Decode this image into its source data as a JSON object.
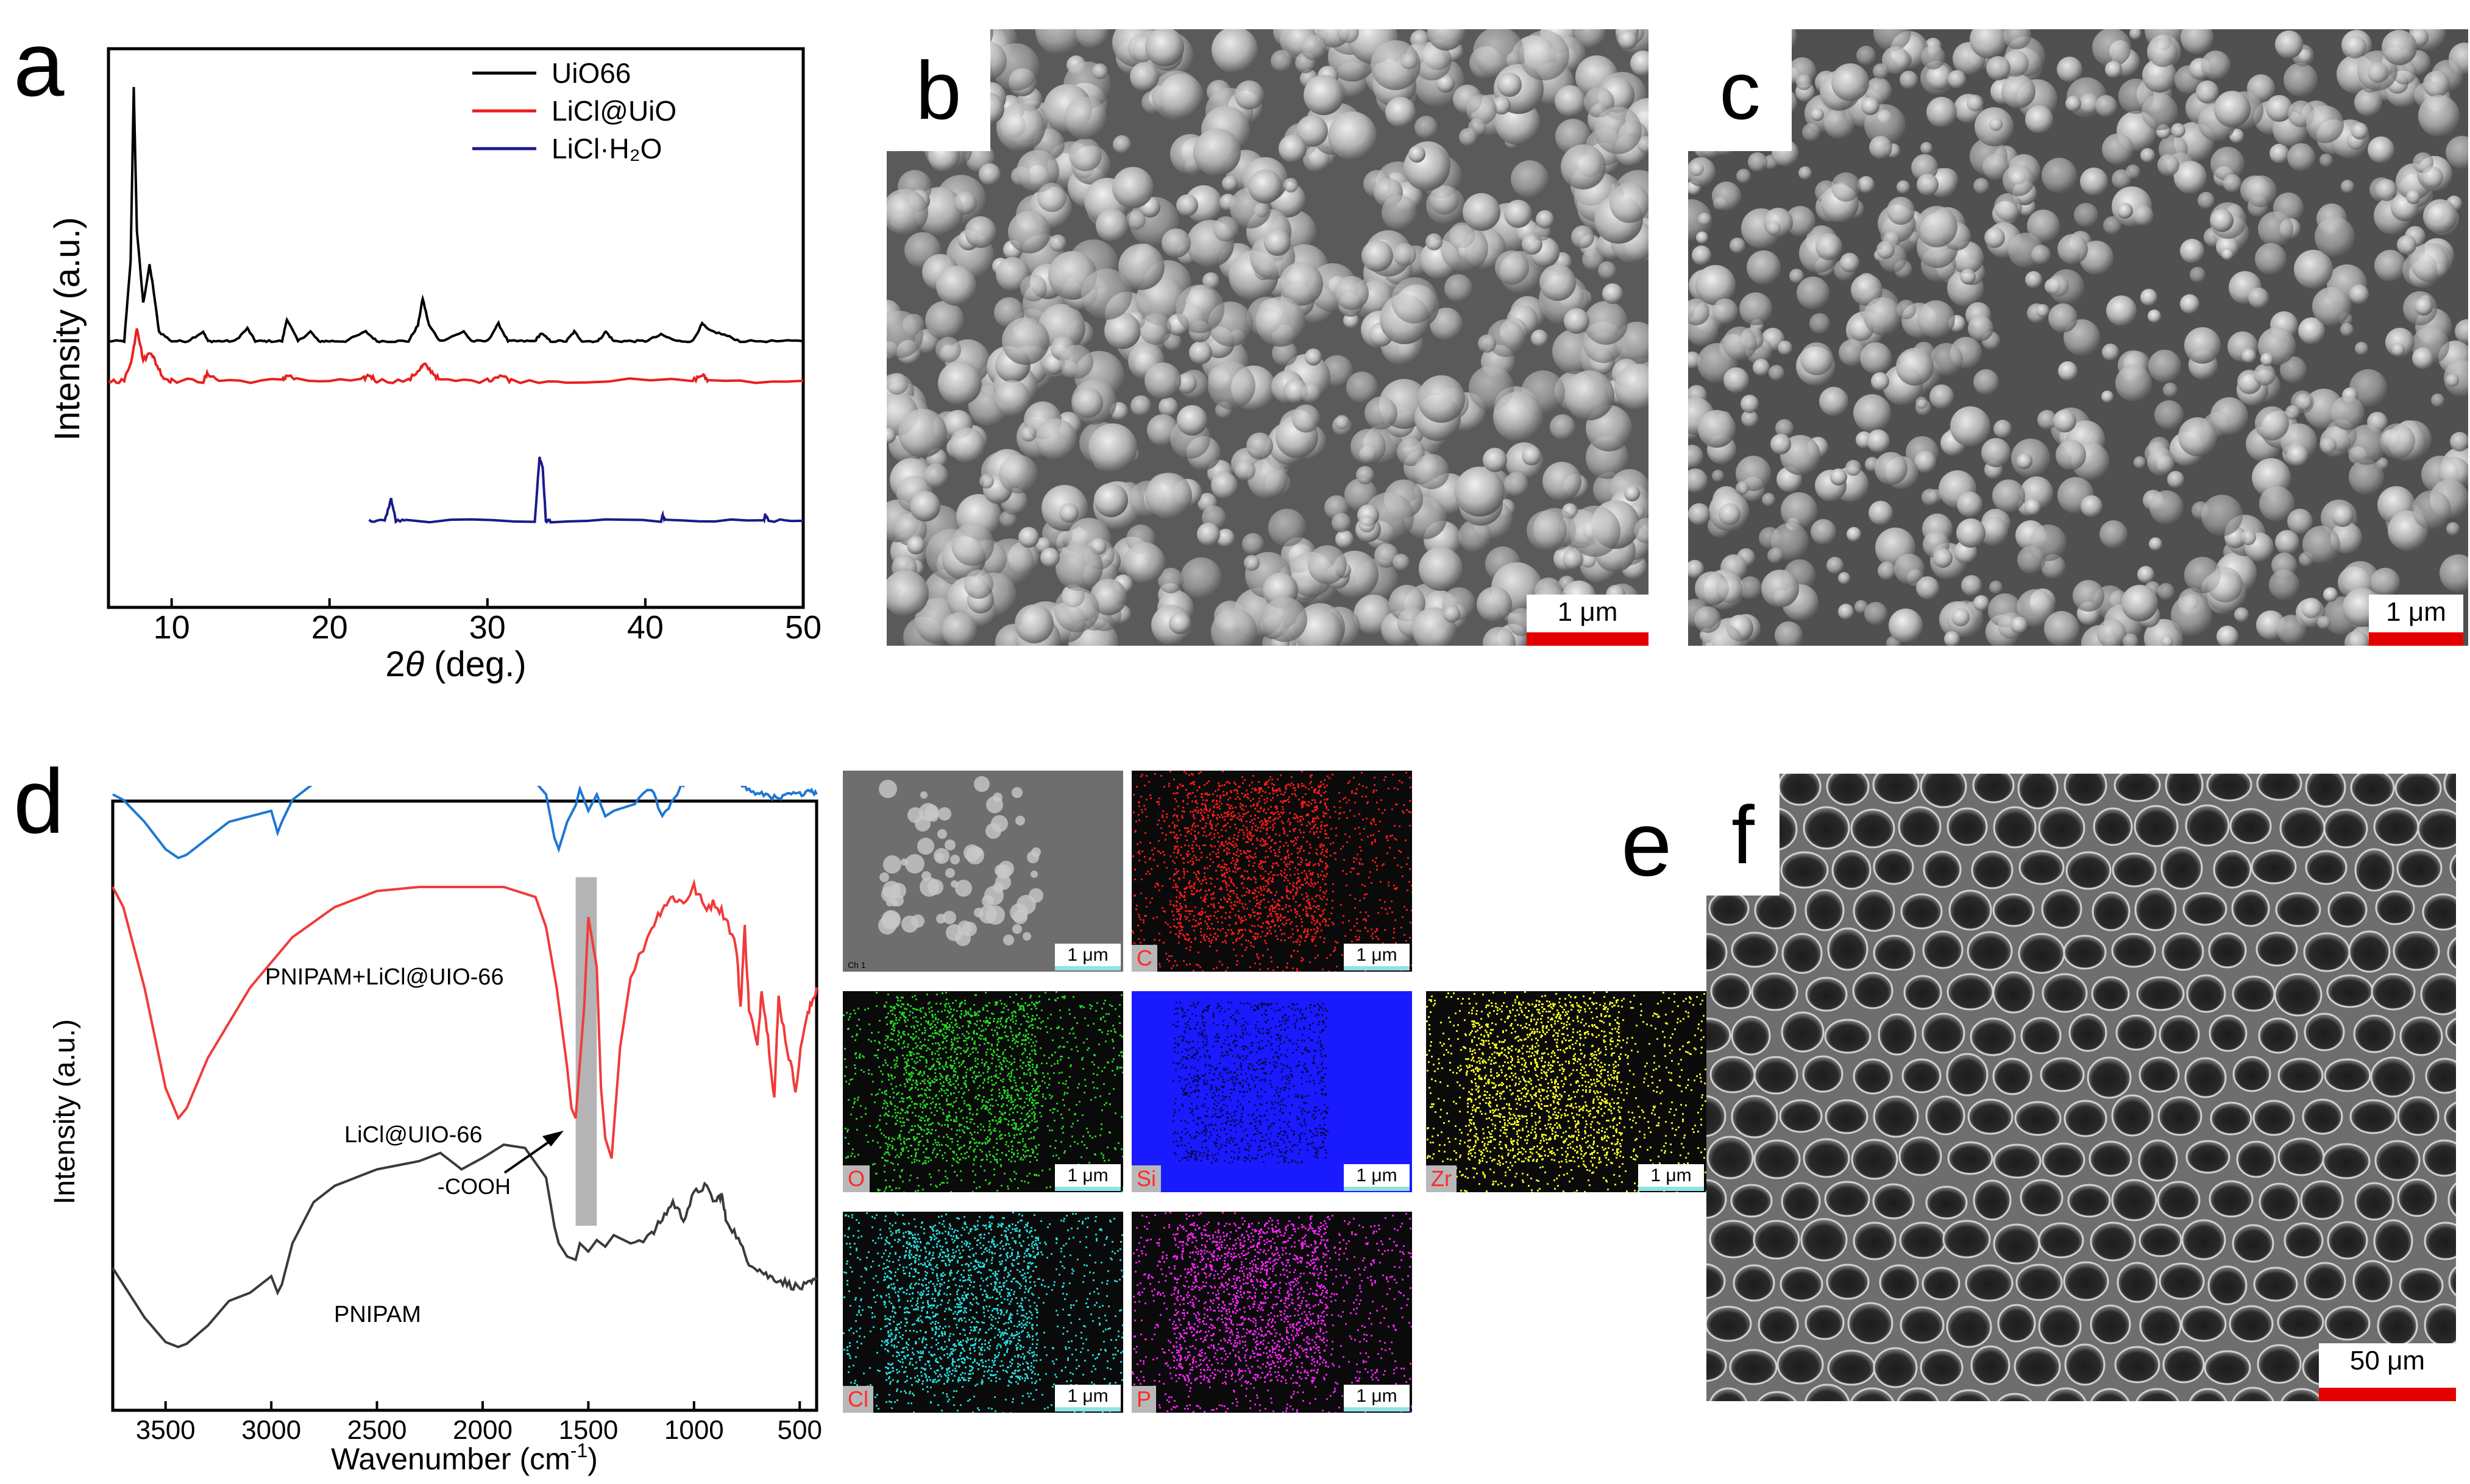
{
  "panels": {
    "a": "a",
    "b": "b",
    "c": "c",
    "d": "d",
    "e": "e",
    "f": "f"
  },
  "chart_data": [
    {
      "type": "line",
      "panel": "a",
      "xlabel_prefix": "2",
      "xlabel_theta": "θ",
      "xlabel_suffix": " (deg.)",
      "ylabel": "Intensity (a.u.)",
      "xlim": [
        6,
        50
      ],
      "xticks": [
        "10",
        "20",
        "30",
        "40",
        "50"
      ],
      "legend_placement": "top-right",
      "series": [
        {
          "name": "UiO66",
          "color": "#000000",
          "x": [
            6,
            7,
            7.4,
            7.6,
            7.8,
            8.2,
            8.6,
            8.8,
            9.2,
            10,
            11,
            12,
            12.3,
            13,
            14,
            14.8,
            15.3,
            16,
            17,
            17.3,
            18,
            18.8,
            19.3,
            20,
            21,
            22.3,
            23,
            24,
            25,
            25.6,
            25.9,
            26.3,
            27,
            28.5,
            29,
            30,
            30.7,
            31.3,
            32,
            33,
            33.4,
            34,
            35,
            35.5,
            36,
            37,
            37.5,
            38,
            39,
            40,
            41,
            42,
            43,
            43.6,
            44,
            45,
            46,
            48,
            50
          ],
          "y": [
            0,
            0,
            2.5,
            8,
            3.5,
            1.2,
            2.4,
            1.8,
            0.3,
            0,
            0,
            0.3,
            0,
            0,
            0,
            0.4,
            0,
            0,
            0,
            0.7,
            0,
            0.3,
            0,
            0,
            0,
            0.3,
            0,
            0,
            0,
            0.5,
            1.35,
            0.5,
            0,
            0.3,
            0,
            0,
            0.55,
            0,
            0,
            0,
            0.25,
            0,
            0,
            0.3,
            0,
            0,
            0.3,
            0,
            0,
            0,
            0.2,
            0,
            0,
            0.55,
            0.35,
            0.2,
            0,
            0,
            0
          ]
        },
        {
          "name": "LiCl@UiO",
          "color": "#e8201e",
          "x": [
            6,
            7,
            7.5,
            7.8,
            8.2,
            8.7,
            9,
            9.5,
            10,
            12,
            12.3,
            13,
            17,
            17.3,
            18,
            22,
            22.5,
            23,
            25,
            25.7,
            26,
            26.5,
            27,
            30,
            30.8,
            31.5,
            35,
            43,
            43.6,
            44,
            50
          ],
          "y": [
            0,
            0,
            0.8,
            1.85,
            0.7,
            1,
            0.6,
            0.1,
            0,
            0,
            0.25,
            0,
            0,
            0.2,
            0,
            0,
            0.2,
            0,
            0,
            0.4,
            0.55,
            0.3,
            0,
            0,
            0.2,
            0,
            0,
            0,
            0.2,
            0,
            0
          ],
          "noise": 0.08
        },
        {
          "name": "LiCl·H₂O",
          "color": "#1a1a8c",
          "x": [
            22.5,
            23.5,
            23.9,
            24.2,
            25,
            33,
            33.3,
            33.5,
            33.7,
            34,
            41,
            41.1,
            41.3,
            47.5,
            47.6,
            47.8,
            50
          ],
          "y": [
            0,
            0,
            0.45,
            0,
            0,
            0,
            1.3,
            1.1,
            0,
            0,
            0,
            0.1,
            0,
            0,
            0.12,
            0,
            0
          ]
        }
      ]
    },
    {
      "type": "line",
      "panel": "d",
      "xlabel_prefix": "Wavenumber (cm",
      "xlabel_sup": "-1",
      "xlabel_suffix": ")",
      "ylabel": "Intensity (a.u.)",
      "xlim": [
        3750,
        420
      ],
      "xticks": [
        "3500",
        "3000",
        "2500",
        "2000",
        "1500",
        "1000",
        "500"
      ],
      "highlight_band": [
        1560,
        1460
      ],
      "annotations": [
        "PNIPAM+LiCl@UIO-66",
        "LiCl@UIO-66",
        "PNIPAM",
        "-COOH"
      ],
      "series": [
        {
          "name": "PNIPAM+LiCl@UIO-66",
          "color": "#1e77d4",
          "x": [
            3750,
            3700,
            3600,
            3500,
            3440,
            3400,
            3300,
            3200,
            3100,
            3000,
            2970,
            2950,
            2900,
            2800,
            2600,
            2400,
            2200,
            2000,
            1900,
            1800,
            1700,
            1660,
            1640,
            1600,
            1560,
            1540,
            1500,
            1460,
            1420,
            1380,
            1300,
            1200,
            1150,
            1100,
            1050,
            1000,
            950,
            900,
            850,
            800,
            750,
            700,
            650,
            600,
            550,
            500,
            450,
            420
          ],
          "y": [
            2.2,
            2.15,
            1.95,
            1.7,
            1.62,
            1.65,
            1.8,
            1.95,
            2.0,
            2.05,
            1.85,
            1.95,
            2.15,
            2.3,
            2.45,
            2.5,
            2.52,
            2.5,
            2.48,
            2.42,
            2.2,
            1.8,
            1.7,
            1.95,
            2.1,
            2.25,
            2.05,
            2.2,
            2.0,
            2.05,
            2.1,
            2.25,
            2.0,
            2.15,
            2.3,
            2.45,
            2.5,
            2.55,
            2.5,
            2.35,
            2.25,
            2.2,
            2.2,
            2.15,
            2.2,
            2.2,
            2.25,
            2.2
          ]
        },
        {
          "name": "LiCl@UIO-66",
          "color": "#f23a3a",
          "x": [
            3750,
            3700,
            3600,
            3500,
            3440,
            3400,
            3300,
            3100,
            2900,
            2700,
            2500,
            2300,
            2100,
            1900,
            1750,
            1700,
            1650,
            1600,
            1580,
            1560,
            1520,
            1500,
            1460,
            1440,
            1420,
            1390,
            1350,
            1300,
            1200,
            1150,
            1100,
            1050,
            1000,
            950,
            900,
            850,
            800,
            780,
            760,
            740,
            700,
            680,
            650,
            620,
            600,
            560,
            520,
            480,
            450,
            420
          ],
          "y": [
            1.8,
            1.7,
            1.3,
            0.8,
            0.65,
            0.7,
            0.95,
            1.3,
            1.55,
            1.7,
            1.78,
            1.8,
            1.8,
            1.8,
            1.75,
            1.6,
            1.3,
            0.9,
            0.7,
            0.65,
            1.2,
            1.65,
            1.4,
            0.8,
            0.55,
            0.45,
            1.0,
            1.35,
            1.6,
            1.7,
            1.75,
            1.72,
            1.8,
            1.7,
            1.72,
            1.65,
            1.5,
            1.2,
            1.6,
            1.2,
            1.0,
            1.3,
            1.05,
            0.75,
            1.25,
            1.0,
            0.8,
            1.1,
            1.2,
            1.3
          ]
        },
        {
          "name": "PNIPAM",
          "color": "#3a3a3a",
          "x": [
            3750,
            3700,
            3600,
            3500,
            3440,
            3400,
            3300,
            3200,
            3100,
            3000,
            2970,
            2950,
            2900,
            2800,
            2700,
            2500,
            2300,
            2200,
            2100,
            2000,
            1900,
            1800,
            1700,
            1660,
            1640,
            1600,
            1560,
            1540,
            1500,
            1460,
            1420,
            1380,
            1300,
            1200,
            1150,
            1100,
            1050,
            1000,
            950,
            900,
            870,
            850,
            800,
            750,
            700,
            650,
            600,
            550,
            500,
            450,
            420
          ],
          "y": [
            0.55,
            0.45,
            0.25,
            0.1,
            0.07,
            0.09,
            0.2,
            0.35,
            0.4,
            0.5,
            0.4,
            0.45,
            0.7,
            0.95,
            1.05,
            1.15,
            1.2,
            1.25,
            1.15,
            1.22,
            1.3,
            1.28,
            1.1,
            0.8,
            0.7,
            0.62,
            0.6,
            0.7,
            0.65,
            0.72,
            0.68,
            0.75,
            0.7,
            0.75,
            0.85,
            0.95,
            0.85,
            1.0,
            1.05,
            0.95,
            1.0,
            0.85,
            0.75,
            0.6,
            0.55,
            0.5,
            0.48,
            0.45,
            0.43,
            0.45,
            0.48
          ]
        }
      ]
    }
  ],
  "sem": {
    "b": {
      "scale": "1 μm"
    },
    "c": {
      "scale": "1 μm"
    },
    "f": {
      "scale": "50 μm"
    }
  },
  "eds": {
    "tiles": [
      {
        "label": "Ch 1",
        "scale": "1 μm",
        "color": "#8a8a8a"
      },
      {
        "label": "C",
        "scale": "1 μm",
        "color": "#ff1a1a"
      },
      {
        "label": "O",
        "scale": "1 μm",
        "color": "#22dd22"
      },
      {
        "label": "Si",
        "scale": "1 μm",
        "color": "#1a1aff"
      },
      {
        "label": "Zr",
        "scale": "1 μm",
        "color": "#ffff22"
      },
      {
        "label": "Cl",
        "scale": "1 μm",
        "color": "#22e0e0"
      },
      {
        "label": "P",
        "scale": "1 μm",
        "color": "#ff22ff"
      }
    ]
  }
}
